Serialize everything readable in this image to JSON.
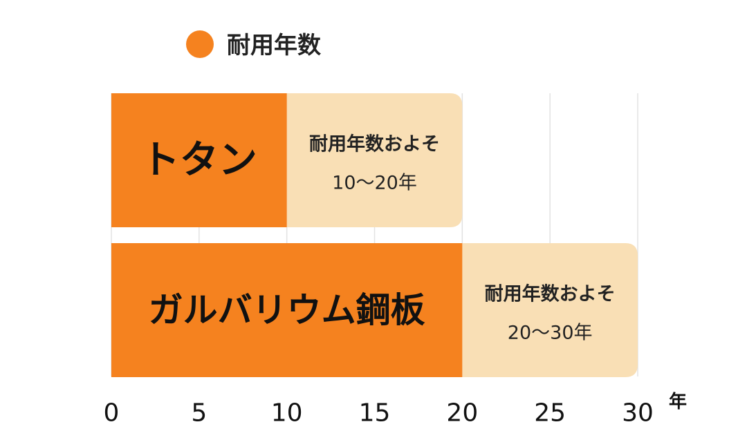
{
  "chart_data": {
    "type": "bar",
    "orientation": "horizontal",
    "stacked": true,
    "categories": [
      "トタン",
      "ガルバリウム鋼板"
    ],
    "series": [
      {
        "name": "耐用年数",
        "values": [
          10,
          20
        ],
        "color": "#F5821F"
      },
      {
        "values": [
          10,
          10
        ],
        "color": "#F9DFB5",
        "labels": [
          [
            "耐用年数およそ",
            "10〜20年"
          ],
          [
            "耐用年数およそ",
            "20〜30年"
          ]
        ]
      }
    ],
    "x_ticks": [
      "0",
      "5",
      "10",
      "15",
      "20",
      "25",
      "30"
    ],
    "x_unit": "年",
    "xlim": [
      0,
      30
    ],
    "grid": true,
    "legend_position": "top-left"
  }
}
